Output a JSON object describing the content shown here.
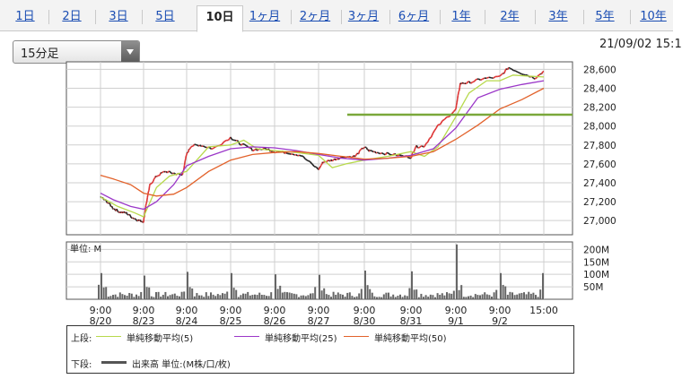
{
  "tabs": [
    {
      "label": "1日",
      "active": false
    },
    {
      "label": "2日",
      "active": false
    },
    {
      "label": "3日",
      "active": false
    },
    {
      "label": "5日",
      "active": false
    },
    {
      "label": "10日",
      "active": true
    },
    {
      "label": "1ヶ月",
      "active": false
    },
    {
      "label": "2ヶ月",
      "active": false
    },
    {
      "label": "3ヶ月",
      "active": false
    },
    {
      "label": "6ヶ月",
      "active": false
    },
    {
      "label": "1年",
      "active": false
    },
    {
      "label": "2年",
      "active": false
    },
    {
      "label": "3年",
      "active": false
    },
    {
      "label": "5年",
      "active": false
    },
    {
      "label": "10年",
      "active": false
    }
  ],
  "interval_select": {
    "value": "15分足"
  },
  "datetime": "21/09/02 15:1",
  "chart_data": {
    "type": "line",
    "price_panel": {
      "ylim": [
        26850,
        28680
      ],
      "yticks": [
        "27,000",
        "27,200",
        "27,400",
        "27,600",
        "27,800",
        "28,000",
        "28,200",
        "28,400",
        "28,600"
      ],
      "ytick_values": [
        27000,
        27200,
        27400,
        27600,
        27800,
        28000,
        28200,
        28400,
        28600
      ],
      "hline_value": 28120,
      "hline_color": "#7aa83a",
      "series": [
        {
          "name": "単純移動平均(5)",
          "color": "#b7d94c",
          "x": [
            0,
            0.4,
            0.8,
            1,
            1.3,
            1.6,
            2,
            2.5,
            3,
            3.3,
            3.6,
            4,
            4.5,
            5,
            5.3,
            5.6,
            6,
            6.5,
            7,
            7.3,
            7.6,
            8,
            8.3,
            8.7,
            9,
            9.3,
            9.6,
            10
          ],
          "values": [
            27250,
            27150,
            27080,
            27040,
            27350,
            27470,
            27520,
            27780,
            27800,
            27850,
            27760,
            27740,
            27720,
            27690,
            27560,
            27600,
            27640,
            27680,
            27730,
            27680,
            27780,
            28100,
            28350,
            28480,
            28480,
            28540,
            28530,
            28520
          ]
        },
        {
          "name": "単純移動平均(25)",
          "color": "#9b37c8",
          "x": [
            0,
            0.3,
            0.7,
            1,
            1.3,
            1.7,
            2,
            2.5,
            3,
            3.5,
            4,
            4.5,
            5,
            5.5,
            6,
            6.5,
            7,
            7.5,
            8,
            8.5,
            9,
            9.5,
            10
          ],
          "values": [
            27290,
            27220,
            27150,
            27120,
            27200,
            27380,
            27580,
            27680,
            27760,
            27780,
            27770,
            27740,
            27700,
            27660,
            27640,
            27660,
            27690,
            27760,
            27980,
            28300,
            28390,
            28440,
            28480
          ]
        },
        {
          "name": "単純移動平均(50)",
          "color": "#e2622b",
          "x": [
            0,
            0.3,
            0.7,
            1,
            1.3,
            1.7,
            2,
            2.5,
            3,
            3.5,
            4,
            4.5,
            5,
            5.5,
            6,
            6.5,
            7,
            7.5,
            8,
            8.5,
            9,
            9.5,
            10
          ],
          "values": [
            27480,
            27440,
            27380,
            27290,
            27260,
            27280,
            27350,
            27520,
            27640,
            27700,
            27720,
            27730,
            27710,
            27680,
            27650,
            27660,
            27680,
            27730,
            27860,
            28010,
            28180,
            28280,
            28400
          ]
        }
      ],
      "price_path": {
        "x": [
          0,
          0.15,
          0.3,
          0.45,
          0.6,
          0.75,
          0.9,
          1,
          1.05,
          1.15,
          1.3,
          1.5,
          1.7,
          1.9,
          2,
          2.1,
          2.3,
          2.6,
          3,
          3.2,
          3.5,
          3.8,
          4,
          4.3,
          4.6,
          5,
          5.1,
          5.3,
          5.5,
          5.8,
          6,
          6.1,
          6.3,
          6.6,
          7,
          7.1,
          7.3,
          7.6,
          8,
          8.1,
          8.3,
          8.6,
          9,
          9.2,
          9.5,
          9.8,
          10
        ],
        "values": [
          27250,
          27200,
          27130,
          27090,
          27080,
          27030,
          27000,
          26990,
          27150,
          27380,
          27470,
          27520,
          27500,
          27480,
          27700,
          27790,
          27800,
          27760,
          27880,
          27820,
          27750,
          27760,
          27730,
          27720,
          27690,
          27540,
          27620,
          27640,
          27670,
          27680,
          27780,
          27740,
          27720,
          27700,
          27670,
          27780,
          27790,
          28000,
          28180,
          28450,
          28460,
          28500,
          28520,
          28620,
          28560,
          28510,
          28580
        ]
      }
    },
    "volume_panel": {
      "label": "単位: M",
      "ylim": [
        0,
        230
      ],
      "yticks": [
        "200M",
        "150M",
        "100M",
        "50M"
      ],
      "ytick_values": [
        200,
        150,
        100,
        50
      ],
      "day_spikes": [
        58,
        105,
        95,
        110,
        105,
        100,
        98,
        115,
        112,
        220,
        105,
        108
      ]
    },
    "x_tick_times": [
      "9:00",
      "9:00",
      "9:00",
      "9:00",
      "9:00",
      "9:00",
      "9:00",
      "9:00",
      "9:00",
      "9:00",
      "15:00"
    ],
    "x_tick_dates": [
      "8/20",
      "8/23",
      "8/24",
      "8/25",
      "8/26",
      "8/27",
      "8/30",
      "8/31",
      "9/1",
      "9/2",
      ""
    ]
  },
  "legend": {
    "upper_label": "上段:",
    "lower_label": "下段:",
    "ma5": "単純移動平均(5)",
    "ma25": "単純移動平均(25)",
    "ma50": "単純移動平均(50)",
    "volume": "出来高 単位:(M株/口/枚)",
    "colors": {
      "ma5": "#b7d94c",
      "ma25": "#9b37c8",
      "ma50": "#e2622b",
      "volume": "#555555"
    }
  }
}
